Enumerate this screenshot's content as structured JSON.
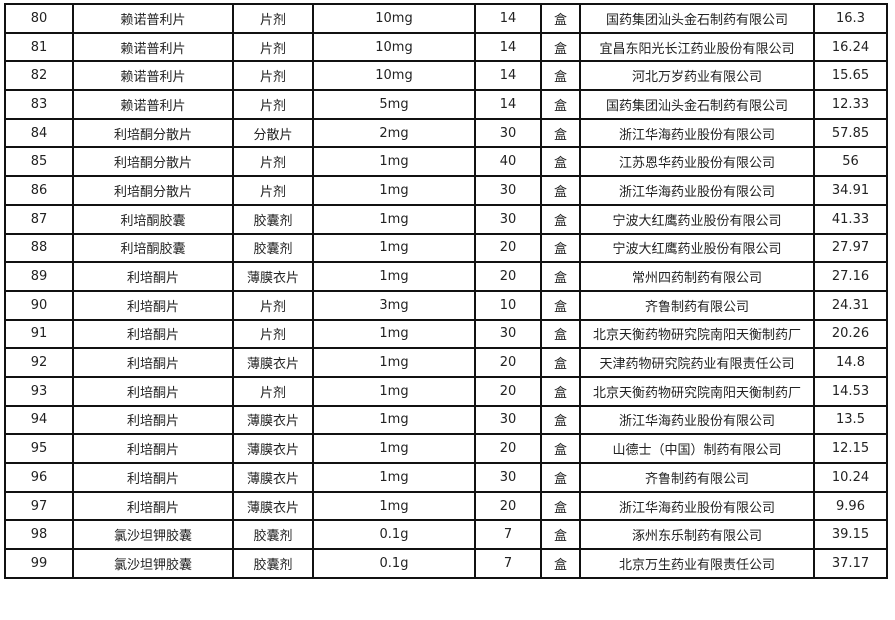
{
  "rows": [
    [
      "80",
      "赖诺普利片",
      "片剂",
      "10mg",
      "14",
      "盒",
      "国药集团汕头金石制药有限公司",
      "16.3"
    ],
    [
      "81",
      "赖诺普利片",
      "片剂",
      "10mg",
      "14",
      "盒",
      "宜昌东阳光长江药业股份有限公司",
      "16.24"
    ],
    [
      "82",
      "赖诺普利片",
      "片剂",
      "10mg",
      "14",
      "盒",
      "河北万岁药业有限公司",
      "15.65"
    ],
    [
      "83",
      "赖诺普利片",
      "片剂",
      "5mg",
      "14",
      "盒",
      "国药集团汕头金石制药有限公司",
      "12.33"
    ],
    [
      "84",
      "利培酮分散片",
      "分散片",
      "2mg",
      "30",
      "盒",
      "浙江华海药业股份有限公司",
      "57.85"
    ],
    [
      "85",
      "利培酮分散片",
      "片剂",
      "1mg",
      "40",
      "盒",
      "江苏恩华药业股份有限公司",
      "56"
    ],
    [
      "86",
      "利培酮分散片",
      "片剂",
      "1mg",
      "30",
      "盒",
      "浙江华海药业股份有限公司",
      "34.91"
    ],
    [
      "87",
      "利培酮胶囊",
      "胶囊剂",
      "1mg",
      "30",
      "盒",
      "宁波大红鹰药业股份有限公司",
      "41.33"
    ],
    [
      "88",
      "利培酮胶囊",
      "胶囊剂",
      "1mg",
      "20",
      "盒",
      "宁波大红鹰药业股份有限公司",
      "27.97"
    ],
    [
      "89",
      "利培酮片",
      "薄膜衣片",
      "1mg",
      "20",
      "盒",
      "常州四药制药有限公司",
      "27.16"
    ],
    [
      "90",
      "利培酮片",
      "片剂",
      "3mg",
      "10",
      "盒",
      "齐鲁制药有限公司",
      "24.31"
    ],
    [
      "91",
      "利培酮片",
      "片剂",
      "1mg",
      "30",
      "盒",
      "北京天衡药物研究院南阳天衡制药厂",
      "20.26"
    ],
    [
      "92",
      "利培酮片",
      "薄膜衣片",
      "1mg",
      "20",
      "盒",
      "天津药物研究院药业有限责任公司",
      "14.8"
    ],
    [
      "93",
      "利培酮片",
      "片剂",
      "1mg",
      "20",
      "盒",
      "北京天衡药物研究院南阳天衡制药厂",
      "14.53"
    ],
    [
      "94",
      "利培酮片",
      "薄膜衣片",
      "1mg",
      "30",
      "盒",
      "浙江华海药业股份有限公司",
      "13.5"
    ],
    [
      "95",
      "利培酮片",
      "薄膜衣片",
      "1mg",
      "20",
      "盒",
      "山德士（中国）制药有限公司",
      "12.15"
    ],
    [
      "96",
      "利培酮片",
      "薄膜衣片",
      "1mg",
      "30",
      "盒",
      "齐鲁制药有限公司",
      "10.24"
    ],
    [
      "97",
      "利培酮片",
      "薄膜衣片",
      "1mg",
      "20",
      "盒",
      "浙江华海药业股份有限公司",
      "9.96"
    ],
    [
      "98",
      "氯沙坦钾胶囊",
      "胶囊剂",
      "0.1g",
      "7",
      "盒",
      "涿州东乐制药有限公司",
      "39.15"
    ],
    [
      "99",
      "氯沙坦钾胶囊",
      "胶囊剂",
      "0.1g",
      "7",
      "盒",
      "北京万生药业有限责任公司",
      "37.17"
    ]
  ]
}
